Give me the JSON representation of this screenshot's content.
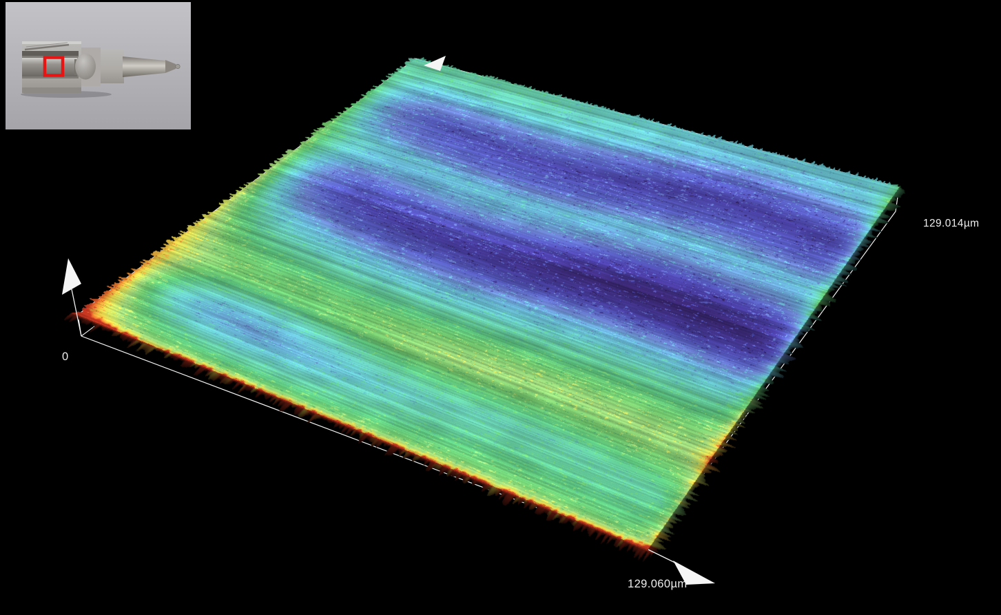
{
  "scene": {
    "background": "#000000"
  },
  "labels": {
    "x_extent": "129.060µm",
    "y_extent": "129.014µm",
    "z_origin": "0"
  },
  "wireframe": {
    "color": "#f2f2f2",
    "arrow_color": "#f5f5f5"
  },
  "inset": {
    "background": "#b6b6ba",
    "marker_color": "#e81414",
    "description": "photograph of a sectioned fuel-injector nozzle; red square marks the measured area on the needle"
  },
  "chart_data": {
    "type": "surface",
    "title": "",
    "x_axis": {
      "label": "129.060µm",
      "extent_um": 129.06
    },
    "y_axis": {
      "label": "129.014µm",
      "extent_um": 129.014
    },
    "z_axis": {
      "origin_label": "0"
    },
    "colormap": {
      "style": "rainbow height map (violet = low, red = high)",
      "stops": [
        [
          0,
          "#38266e"
        ],
        [
          0.07,
          "#4a3fa4"
        ],
        [
          0.14,
          "#5a61c6"
        ],
        [
          0.22,
          "#6d86d0"
        ],
        [
          0.3,
          "#67b0d4"
        ],
        [
          0.38,
          "#68c9cb"
        ],
        [
          0.46,
          "#65c9a6"
        ],
        [
          0.54,
          "#5cc47e"
        ],
        [
          0.62,
          "#72c96e"
        ],
        [
          0.7,
          "#9ed47a"
        ],
        [
          0.78,
          "#ccdc5e"
        ],
        [
          0.85,
          "#e7d24a"
        ],
        [
          0.9,
          "#eba43a"
        ],
        [
          0.95,
          "#e0702c"
        ],
        [
          1,
          "#c23520"
        ]
      ]
    },
    "relative_height_profile": {
      "axis": "0 = back-right edge, 1 = front-left edge (perpendicular to machining lay)",
      "points": [
        [
          0,
          0.36
        ],
        [
          0.05,
          0.32
        ],
        [
          0.1,
          0.17
        ],
        [
          0.16,
          0.08
        ],
        [
          0.22,
          0.15
        ],
        [
          0.28,
          0.33
        ],
        [
          0.33,
          0.27
        ],
        [
          0.38,
          0.13
        ],
        [
          0.44,
          0.07
        ],
        [
          0.5,
          0.15
        ],
        [
          0.56,
          0.32
        ],
        [
          0.62,
          0.46
        ],
        [
          0.68,
          0.56
        ],
        [
          0.74,
          0.63
        ],
        [
          0.8,
          0.56
        ],
        [
          0.86,
          0.45
        ],
        [
          0.92,
          0.5
        ],
        [
          0.96,
          0.56
        ],
        [
          1,
          0.62
        ]
      ]
    },
    "surface_character": "machined surface with fine parallel striations; high red/orange ridge along the left edge, alternating cyan and blue-violet valleys across the field, warm peaks along the front and right edges"
  }
}
